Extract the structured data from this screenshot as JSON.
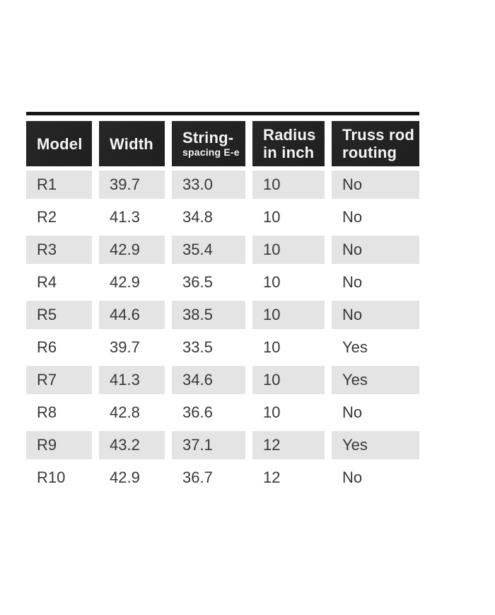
{
  "table": {
    "column_keys": [
      "model",
      "width",
      "string-spacing",
      "radius",
      "truss-rod"
    ],
    "columns": [
      {
        "line1": "Model",
        "line2": ""
      },
      {
        "line1": "Width",
        "line2": ""
      },
      {
        "line1": "String-",
        "line2": "spacing E-e"
      },
      {
        "line1": "Radius",
        "line2": "in inch"
      },
      {
        "line1": "Truss rod",
        "line2": "routing"
      }
    ],
    "rows": [
      [
        "R1",
        "39.7",
        "33.0",
        "10",
        "No"
      ],
      [
        "R2",
        "41.3",
        "34.8",
        "10",
        "No"
      ],
      [
        "R3",
        "42.9",
        "35.4",
        "10",
        "No"
      ],
      [
        "R4",
        "42.9",
        "36.5",
        "10",
        "No"
      ],
      [
        "R5",
        "44.6",
        "38.5",
        "10",
        "No"
      ],
      [
        "R6",
        "39.7",
        "33.5",
        "10",
        "Yes"
      ],
      [
        "R7",
        "41.3",
        "34.6",
        "10",
        "Yes"
      ],
      [
        "R8",
        "42.8",
        "36.6",
        "10",
        "No"
      ],
      [
        "R9",
        "43.2",
        "37.1",
        "12",
        "Yes"
      ],
      [
        "R10",
        "42.9",
        "36.7",
        "12",
        "No"
      ]
    ]
  },
  "colors": {
    "page_bg": "#ffffff",
    "header_bg": "#1f1f1f",
    "header_text": "#f4f4f4",
    "row_shaded": "#e4e4e4",
    "body_text": "#383838",
    "rule": "#171717"
  }
}
